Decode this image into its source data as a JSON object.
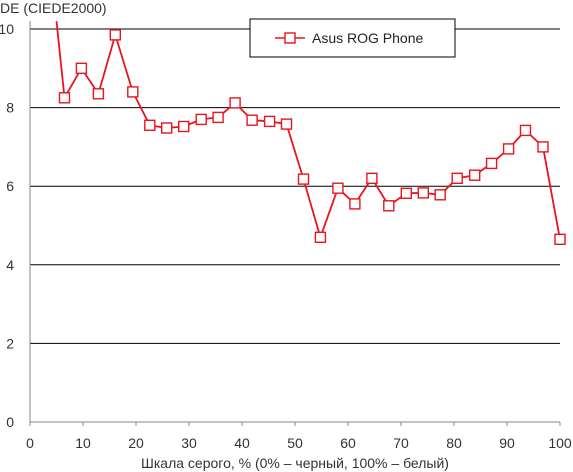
{
  "chart_data": {
    "type": "line",
    "title": "",
    "ylabel": "DE (CIEDE2000)",
    "xlabel": "Шкала серого, % (0% – черный, 100% – белый)",
    "xlim": [
      0,
      100
    ],
    "ylim": [
      0,
      10
    ],
    "xticks": [
      "0",
      "10",
      "20",
      "30",
      "40",
      "50",
      "60",
      "70",
      "80",
      "90",
      "100"
    ],
    "yticks": [
      "0",
      "2",
      "4",
      "6",
      "8",
      "10"
    ],
    "grid": "horizontal",
    "legend_position": "top-center",
    "colors": {
      "series": "#e8141e",
      "grid": "#000000",
      "axis": "#888888",
      "marker_fill": "#ffffff"
    },
    "series": [
      {
        "name": "Asus ROG Phone",
        "x": [
          6.5,
          9.7,
          12.9,
          16.1,
          19.4,
          22.6,
          25.8,
          29.0,
          32.3,
          35.5,
          38.7,
          41.9,
          45.2,
          48.4,
          51.6,
          54.8,
          58.1,
          61.3,
          64.5,
          67.7,
          71.0,
          74.2,
          77.4,
          80.6,
          83.9,
          87.1,
          90.3,
          93.5,
          96.8,
          100
        ],
        "values": [
          8.25,
          9.0,
          8.35,
          9.85,
          8.4,
          7.55,
          7.48,
          7.52,
          7.7,
          7.75,
          8.12,
          7.68,
          7.65,
          7.58,
          6.18,
          4.7,
          5.95,
          5.55,
          6.2,
          5.5,
          5.82,
          5.83,
          5.78,
          6.2,
          6.28,
          6.58,
          6.95,
          7.42,
          7.0,
          4.65
        ]
      }
    ],
    "line_start_above_axis": {
      "x": 5,
      "y": 10.2
    }
  }
}
